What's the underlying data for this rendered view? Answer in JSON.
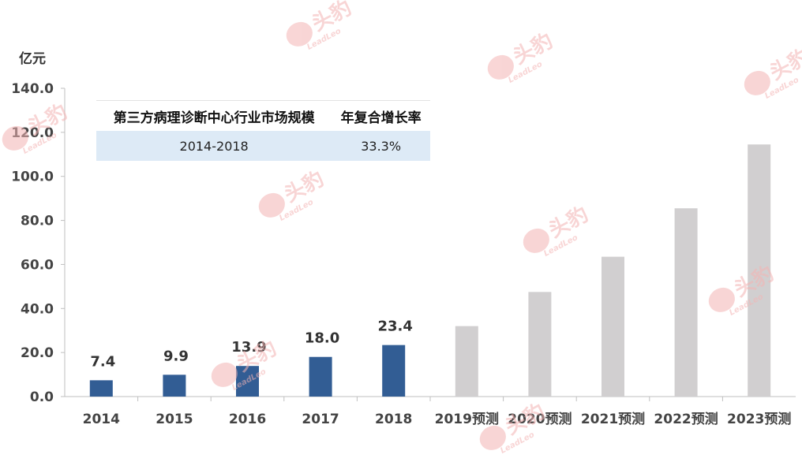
{
  "chart_data": {
    "type": "bar",
    "ylabel": "亿元",
    "ylim": [
      0,
      140
    ],
    "yticks": [
      "0.0",
      "20.0",
      "40.0",
      "60.0",
      "80.0",
      "100.0",
      "120.0",
      "140.0"
    ],
    "categories": [
      "2014",
      "2015",
      "2016",
      "2017",
      "2018",
      "2019预测",
      "2020预测",
      "2021预测",
      "2022预测",
      "2023预测"
    ],
    "values": [
      7.4,
      9.9,
      13.9,
      18.0,
      23.4,
      32.0,
      47.5,
      63.5,
      85.5,
      114.5
    ],
    "data_labels": [
      "7.4",
      "9.9",
      "13.9",
      "18.0",
      "23.4",
      "",
      "",
      "",
      "",
      ""
    ],
    "actual_color": "#325d94",
    "forecast_color": "#d1cfd0",
    "grid": false,
    "legend": "none"
  },
  "table": {
    "header_metric": "第三方病理诊断中心行业市场规模",
    "header_cagr": "年复合增长率",
    "period": "2014-2018",
    "cagr": "33.3%"
  },
  "watermark": {
    "brand": "头豹",
    "sub": "LeadLeo",
    "color": "#f4b4b4"
  }
}
